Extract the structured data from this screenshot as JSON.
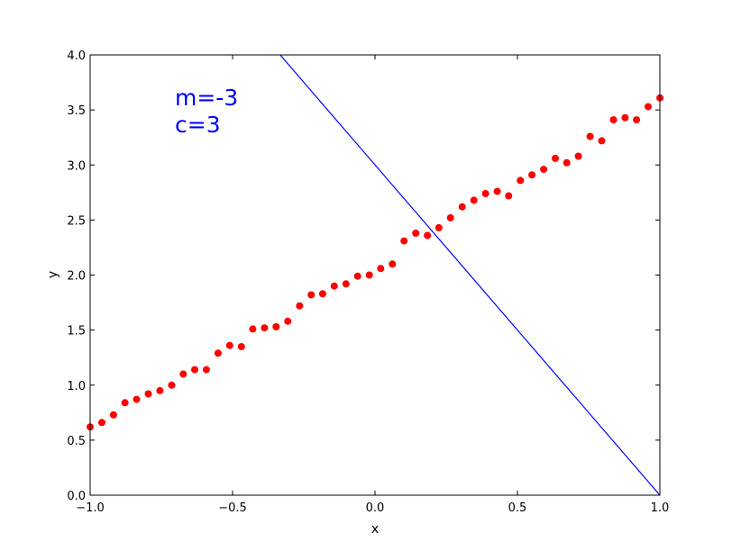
{
  "chart_data": {
    "type": "scatter",
    "title": "",
    "xlabel": "x",
    "ylabel": "y",
    "xlim": [
      -1.0,
      1.0
    ],
    "ylim": [
      0.0,
      4.0
    ],
    "grid": false,
    "x_ticks": [
      "−1.0",
      "−0.5",
      "0.0",
      "0.5",
      "1.0"
    ],
    "x_tick_values": [
      -1.0,
      -0.5,
      0.0,
      0.5,
      1.0
    ],
    "y_ticks": [
      "0.0",
      "0.5",
      "1.0",
      "1.5",
      "2.0",
      "2.5",
      "3.0",
      "3.5",
      "4.0"
    ],
    "y_tick_values": [
      0.0,
      0.5,
      1.0,
      1.5,
      2.0,
      2.5,
      3.0,
      3.5,
      4.0
    ],
    "annotations": [
      "m=-3",
      "c=3"
    ],
    "colors": {
      "points": "#ff0000",
      "line": "#0000ff",
      "annotation": "#0000ff"
    },
    "series": [
      {
        "type": "scatter",
        "x": [
          -1.0,
          -0.959,
          -0.918,
          -0.878,
          -0.837,
          -0.796,
          -0.755,
          -0.714,
          -0.673,
          -0.633,
          -0.592,
          -0.551,
          -0.51,
          -0.469,
          -0.429,
          -0.388,
          -0.347,
          -0.306,
          -0.265,
          -0.224,
          -0.184,
          -0.143,
          -0.102,
          -0.061,
          -0.02,
          0.02,
          0.061,
          0.102,
          0.143,
          0.184,
          0.224,
          0.265,
          0.306,
          0.347,
          0.388,
          0.429,
          0.469,
          0.51,
          0.551,
          0.592,
          0.633,
          0.673,
          0.714,
          0.755,
          0.796,
          0.837,
          0.878,
          0.918,
          0.959,
          1.0
        ],
        "y": [
          0.62,
          0.66,
          0.73,
          0.84,
          0.87,
          0.92,
          0.95,
          1.0,
          1.1,
          1.14,
          1.14,
          1.29,
          1.36,
          1.35,
          1.51,
          1.52,
          1.53,
          1.58,
          1.72,
          1.82,
          1.83,
          1.9,
          1.92,
          1.99,
          2.0,
          2.06,
          2.1,
          2.31,
          2.38,
          2.36,
          2.43,
          2.52,
          2.62,
          2.68,
          2.74,
          2.76,
          2.72,
          2.86,
          2.91,
          2.96,
          3.06,
          3.02,
          3.08,
          3.26,
          3.22,
          3.41,
          3.43,
          3.41,
          3.53,
          3.61
        ]
      },
      {
        "type": "line",
        "x": [
          -0.333,
          1.0
        ],
        "y": [
          4.0,
          0.0
        ]
      }
    ]
  }
}
